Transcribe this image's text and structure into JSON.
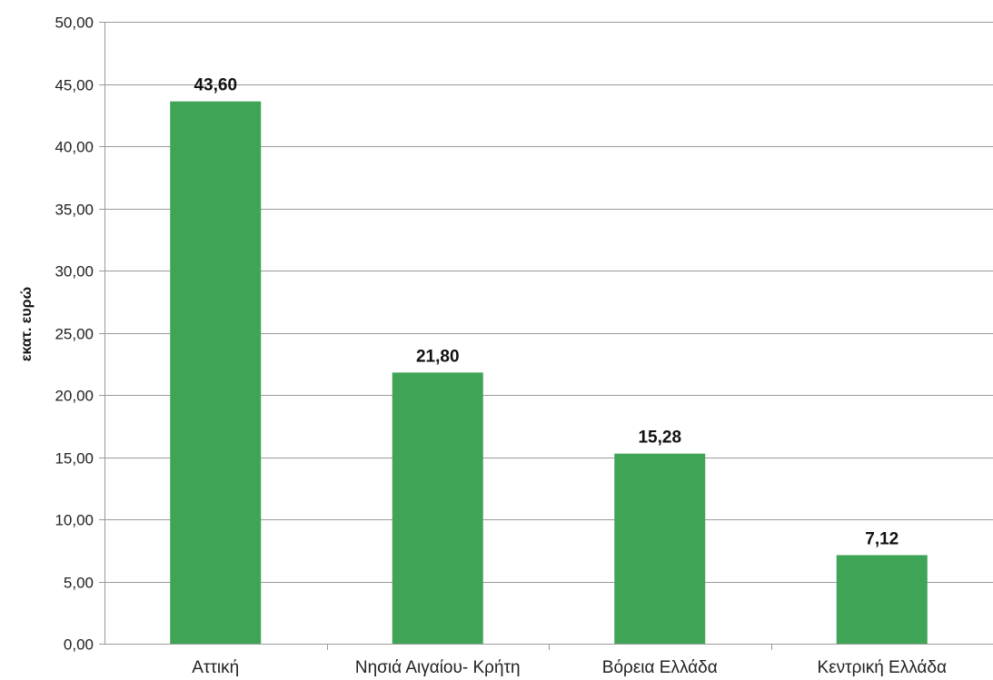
{
  "chart_data": {
    "type": "bar",
    "categories": [
      "Αττική",
      "Νησιά Αιγαίου- Κρήτη",
      "Βόρεια Ελλάδα",
      "Κεντρική Ελλάδα"
    ],
    "values": [
      43.6,
      21.8,
      15.28,
      7.12
    ],
    "data_labels": [
      "43,60",
      "21,80",
      "15,28",
      "7,12"
    ],
    "ylabel": "εκατ. ευρώ",
    "ylim": [
      0,
      50
    ],
    "yticks": [
      0,
      5,
      10,
      15,
      20,
      25,
      30,
      35,
      40,
      45,
      50
    ],
    "ytick_labels": [
      "0,00",
      "5,00",
      "10,00",
      "15,00",
      "20,00",
      "25,00",
      "30,00",
      "35,00",
      "40,00",
      "45,00",
      "50,00"
    ],
    "grid": true,
    "legend": "none",
    "bar_color": "#3fa456"
  }
}
